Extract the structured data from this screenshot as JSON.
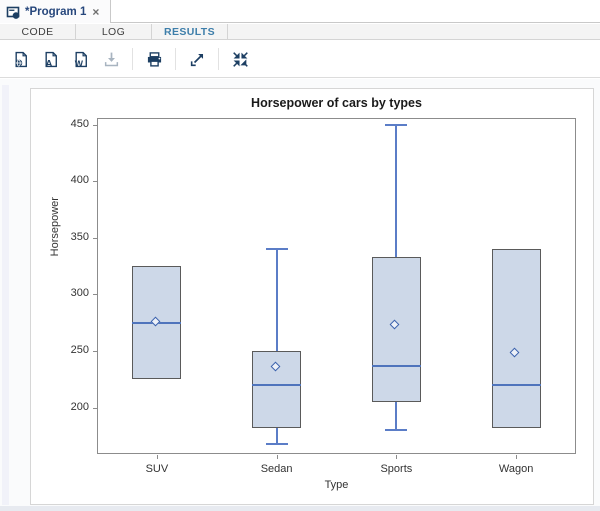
{
  "window": {
    "tab_title": "*Program 1",
    "close_label": "×"
  },
  "tabs": {
    "items": [
      {
        "label": "CODE",
        "active": false
      },
      {
        "label": "LOG",
        "active": false
      },
      {
        "label": "RESULTS",
        "active": true
      }
    ],
    "active_color": "#3d7eaa"
  },
  "toolbar": {
    "icon_color": "#1d3f63",
    "disabled_color": "#a8b4c0",
    "items": [
      {
        "icon": "results-html-icon",
        "disabled": false
      },
      {
        "icon": "results-pdf-icon",
        "disabled": false
      },
      {
        "icon": "results-word-icon",
        "disabled": false
      },
      {
        "icon": "download-icon",
        "disabled": true
      },
      {
        "icon": "separator"
      },
      {
        "icon": "print-icon",
        "disabled": false
      },
      {
        "icon": "separator"
      },
      {
        "icon": "open-new-window-icon",
        "disabled": false
      },
      {
        "icon": "separator"
      },
      {
        "icon": "maximize-view-icon",
        "disabled": false
      }
    ]
  },
  "chart_data": {
    "type": "box",
    "title": "Horsepower of cars by types",
    "xlabel": "Type",
    "ylabel": "Horsepower",
    "categories": [
      "SUV",
      "Sedan",
      "Sports",
      "Wagon"
    ],
    "yticks": [
      200,
      250,
      300,
      350,
      400,
      450
    ],
    "ylim": [
      159,
      456
    ],
    "grid": false,
    "series": [
      {
        "category": "SUV",
        "min": 225,
        "q1": 225,
        "median": 275,
        "q3": 325,
        "max": 325,
        "mean": 275
      },
      {
        "category": "Sedan",
        "min": 168,
        "q1": 182,
        "median": 220,
        "q3": 250,
        "max": 340,
        "mean": 235
      },
      {
        "category": "Sports",
        "min": 180,
        "q1": 205,
        "median": 237,
        "q3": 333,
        "max": 450,
        "mean": 272
      },
      {
        "category": "Wagon",
        "min": 182,
        "q1": 182,
        "median": 220,
        "q3": 340,
        "max": 340,
        "mean": 247
      }
    ],
    "colors": {
      "box_fill": "#cdd8e8",
      "box_border": "#5a5a5a",
      "median": "#4f74bc",
      "whisker": "#5b7dc7",
      "mean_marker_border": "#3b62ad",
      "mean_marker_fill": "#edf1f8",
      "frame": "#8c8c8c",
      "text": "#333333"
    }
  }
}
